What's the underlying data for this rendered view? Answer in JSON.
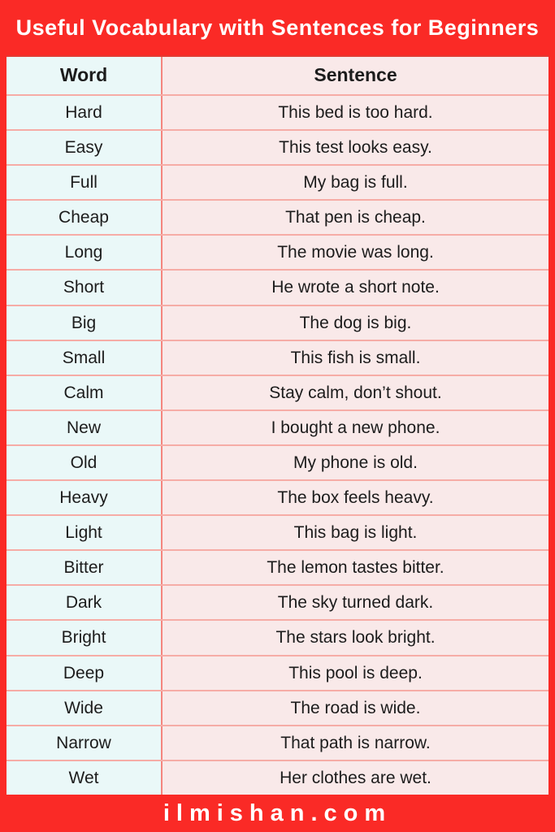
{
  "page": {
    "title": "Useful Vocabulary with Sentences for Beginners",
    "footer": "ilmishan.com"
  },
  "table": {
    "headers": {
      "word": "Word",
      "sentence": "Sentence"
    },
    "rows": [
      {
        "word": "Hard",
        "sentence": "This bed is too hard."
      },
      {
        "word": "Easy",
        "sentence": "This test looks easy."
      },
      {
        "word": "Full",
        "sentence": "My bag is full."
      },
      {
        "word": "Cheap",
        "sentence": "That pen is cheap."
      },
      {
        "word": "Long",
        "sentence": "The movie was long."
      },
      {
        "word": "Short",
        "sentence": "He wrote a short note."
      },
      {
        "word": "Big",
        "sentence": "The dog is big."
      },
      {
        "word": "Small",
        "sentence": "This fish is small."
      },
      {
        "word": "Calm",
        "sentence": "Stay calm, don’t shout."
      },
      {
        "word": "New",
        "sentence": "I bought a new phone."
      },
      {
        "word": "Old",
        "sentence": "My phone is old."
      },
      {
        "word": "Heavy",
        "sentence": "The box feels heavy."
      },
      {
        "word": "Light",
        "sentence": "This bag is light."
      },
      {
        "word": "Bitter",
        "sentence": "The lemon tastes bitter."
      },
      {
        "word": "Dark",
        "sentence": "The sky turned dark."
      },
      {
        "word": "Bright",
        "sentence": "The stars look bright."
      },
      {
        "word": "Deep",
        "sentence": "This pool is deep."
      },
      {
        "word": "Wide",
        "sentence": "The road is wide."
      },
      {
        "word": "Narrow",
        "sentence": "That path is narrow."
      },
      {
        "word": "Wet",
        "sentence": "Her clothes are wet."
      }
    ]
  },
  "colors": {
    "frame_red": "#FA2A26",
    "word_col_bg": "#EAF8F8",
    "sentence_col_bg": "#F9E9E9",
    "divider_h": "#F6ACA6",
    "divider_v": "#F5857E",
    "table_top_line": "#E23B33",
    "cell_text": "#1C1C1C",
    "title_text": "#FFFFFF"
  }
}
